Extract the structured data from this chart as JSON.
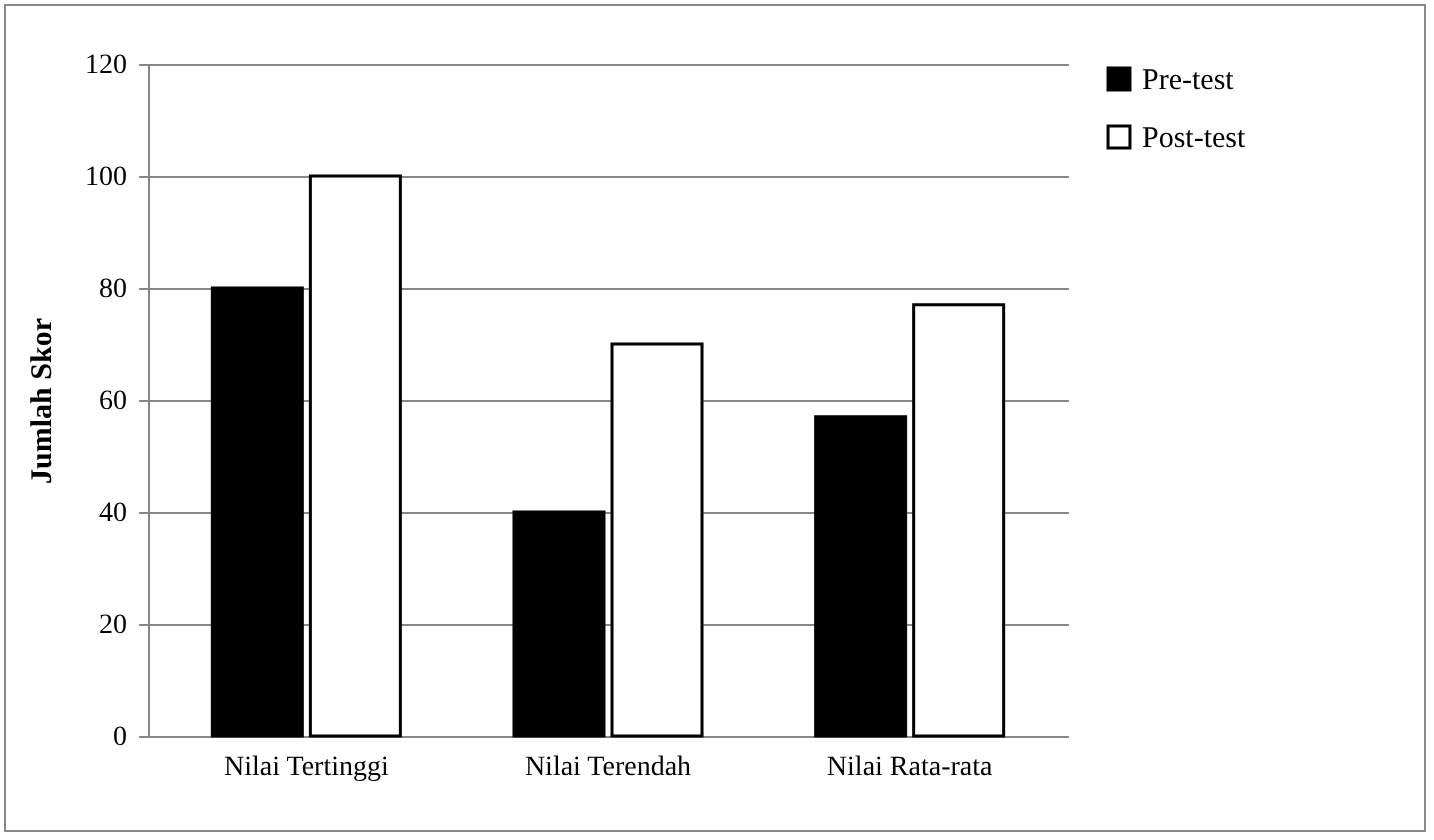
{
  "chart_data": {
    "type": "bar",
    "ylabel": "Jumlah Skor",
    "categories": [
      "Nilai Tertinggi",
      "Nilai Terendah",
      "Nilai Rata-rata"
    ],
    "series": [
      {
        "name": "Pre-test",
        "color": "#000000",
        "values": [
          80,
          40,
          57
        ]
      },
      {
        "name": "Post-test",
        "color": "#ffffff",
        "values": [
          100,
          70,
          77
        ]
      }
    ],
    "ylim": [
      0,
      120
    ],
    "yticks": [
      0,
      20,
      40,
      60,
      80,
      100,
      120
    ],
    "grid": "y",
    "legend": "right"
  }
}
